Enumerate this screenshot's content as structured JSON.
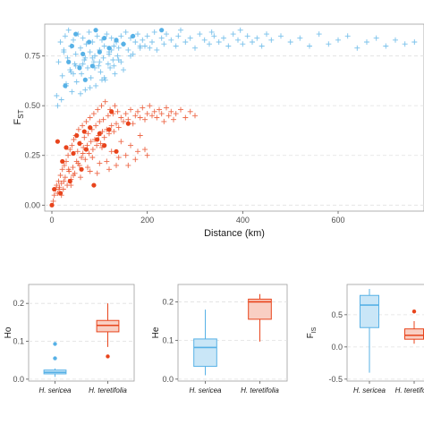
{
  "colors": {
    "sericea": "#57b1e6",
    "sericea_fill": "#c9e6f7",
    "teretifolia": "#e8441c",
    "teretifolia_fill": "#f9cfc3",
    "grid": "#e0e0e0",
    "frame": "#9e9e9e"
  },
  "chart_data": [
    {
      "type": "scatter",
      "xlabel": "Distance (km)",
      "ylabel": "FST",
      "ylabel_main": "F",
      "ylabel_sub": "ST",
      "xlim": [
        -15,
        780
      ],
      "ylim": [
        -0.03,
        0.91
      ],
      "xticks": [
        0,
        200,
        400,
        600
      ],
      "yticks": [
        0.0,
        0.25,
        0.5,
        0.75
      ],
      "xtick_labels": [
        "0",
        "200",
        "400",
        "600"
      ],
      "ytick_labels": [
        "0.00",
        "0.25",
        "0.50",
        "0.75"
      ],
      "grid": true,
      "series": [
        {
          "group": "H. sericea",
          "marker": "cross",
          "color": "#57b1e6",
          "x": [
            10,
            14,
            18,
            22,
            25,
            28,
            30,
            33,
            35,
            38,
            40,
            42,
            45,
            48,
            50,
            52,
            55,
            58,
            60,
            62,
            65,
            68,
            70,
            72,
            75,
            78,
            80,
            82,
            85,
            88,
            90,
            92,
            95,
            98,
            100,
            102,
            105,
            108,
            110,
            112,
            115,
            118,
            120,
            122,
            125,
            128,
            130,
            132,
            135,
            138,
            140,
            145,
            150,
            155,
            160,
            165,
            170,
            175,
            180,
            185,
            190,
            195,
            200,
            210,
            215,
            220,
            230,
            235,
            240,
            250,
            260,
            265,
            270,
            280,
            290,
            300,
            310,
            320,
            330,
            335,
            340,
            350,
            360,
            370,
            380,
            390,
            395,
            400,
            410,
            420,
            430,
            440,
            450,
            460,
            480,
            500,
            520,
            540,
            560,
            580,
            600,
            620,
            640,
            660,
            680,
            700,
            720,
            740,
            760,
            12,
            20,
            30,
            40,
            50,
            60,
            70,
            80,
            90,
            100,
            110,
            120,
            130,
            140,
            150,
            25,
            45,
            65,
            85,
            105,
            125,
            145,
            165,
            185,
            205
          ],
          "y": [
            0.55,
            0.72,
            0.82,
            0.65,
            0.78,
            0.85,
            0.6,
            0.74,
            0.88,
            0.68,
            0.8,
            0.57,
            0.83,
            0.71,
            0.76,
            0.62,
            0.86,
            0.7,
            0.79,
            0.66,
            0.84,
            0.73,
            0.58,
            0.81,
            0.69,
            0.87,
            0.77,
            0.64,
            0.82,
            0.72,
            0.75,
            0.6,
            0.85,
            0.7,
            0.78,
            0.67,
            0.83,
            0.74,
            0.8,
            0.63,
            0.86,
            0.71,
            0.77,
            0.69,
            0.84,
            0.73,
            0.8,
            0.66,
            0.82,
            0.75,
            0.79,
            0.85,
            0.81,
            0.87,
            0.78,
            0.84,
            0.76,
            0.82,
            0.86,
            0.79,
            0.83,
            0.8,
            0.85,
            0.82,
            0.87,
            0.78,
            0.84,
            0.81,
            0.86,
            0.83,
            0.8,
            0.85,
            0.88,
            0.82,
            0.84,
            0.79,
            0.86,
            0.83,
            0.81,
            0.87,
            0.85,
            0.82,
            0.84,
            0.8,
            0.86,
            0.83,
            0.88,
            0.81,
            0.85,
            0.82,
            0.84,
            0.8,
            0.86,
            0.83,
            0.85,
            0.82,
            0.84,
            0.8,
            0.86,
            0.81,
            0.83,
            0.85,
            0.79,
            0.82,
            0.84,
            0.8,
            0.83,
            0.81,
            0.82,
            0.5,
            0.53,
            0.61,
            0.67,
            0.7,
            0.56,
            0.74,
            0.59,
            0.69,
            0.72,
            0.64,
            0.76,
            0.7,
            0.73,
            0.68,
            0.77,
            0.66,
            0.71,
            0.74,
            0.63,
            0.78,
            0.72,
            0.75,
            0.8,
            0.79
          ]
        },
        {
          "group": "H. sericea",
          "marker": "dot",
          "color": "#57b1e6",
          "x": [
            28,
            35,
            42,
            50,
            58,
            65,
            70,
            78,
            85,
            92,
            100,
            110,
            120,
            135,
            150,
            170,
            230
          ],
          "y": [
            0.6,
            0.72,
            0.8,
            0.86,
            0.69,
            0.76,
            0.63,
            0.82,
            0.7,
            0.88,
            0.77,
            0.84,
            0.79,
            0.83,
            0.81,
            0.85,
            0.88
          ]
        },
        {
          "group": "H. teretifolia",
          "marker": "cross",
          "color": "#e8441c",
          "x": [
            3,
            5,
            8,
            10,
            12,
            14,
            16,
            18,
            20,
            22,
            24,
            26,
            28,
            30,
            32,
            34,
            36,
            38,
            40,
            42,
            44,
            46,
            48,
            50,
            52,
            54,
            56,
            58,
            60,
            62,
            64,
            66,
            68,
            70,
            72,
            74,
            76,
            78,
            80,
            82,
            84,
            86,
            88,
            90,
            92,
            94,
            96,
            98,
            100,
            102,
            104,
            106,
            108,
            110,
            112,
            115,
            118,
            120,
            122,
            125,
            128,
            130,
            132,
            135,
            138,
            140,
            145,
            150,
            155,
            160,
            165,
            170,
            175,
            180,
            185,
            190,
            195,
            200,
            205,
            210,
            215,
            220,
            225,
            230,
            235,
            240,
            245,
            250,
            255,
            260,
            270,
            280,
            290,
            300,
            15,
            25,
            35,
            45,
            55,
            65,
            75,
            85,
            95,
            105,
            115,
            125,
            135,
            145,
            155,
            165,
            175,
            185,
            195,
            20,
            40,
            60,
            80,
            100,
            120,
            140,
            160,
            180,
            200
          ],
          "y": [
            0.02,
            0.05,
            0.08,
            0.1,
            0.06,
            0.12,
            0.09,
            0.15,
            0.11,
            0.18,
            0.08,
            0.2,
            0.14,
            0.22,
            0.1,
            0.25,
            0.17,
            0.28,
            0.13,
            0.3,
            0.19,
            0.33,
            0.16,
            0.35,
            0.22,
            0.27,
            0.38,
            0.2,
            0.31,
            0.24,
            0.4,
            0.29,
            0.34,
            0.23,
            0.42,
            0.3,
            0.36,
            0.26,
            0.44,
            0.32,
            0.38,
            0.28,
            0.46,
            0.33,
            0.4,
            0.3,
            0.48,
            0.35,
            0.42,
            0.31,
            0.5,
            0.37,
            0.43,
            0.34,
            0.52,
            0.38,
            0.45,
            0.36,
            0.48,
            0.4,
            0.46,
            0.37,
            0.5,
            0.41,
            0.47,
            0.39,
            0.44,
            0.42,
            0.46,
            0.43,
            0.48,
            0.41,
            0.45,
            0.47,
            0.44,
            0.49,
            0.43,
            0.46,
            0.5,
            0.45,
            0.47,
            0.44,
            0.48,
            0.46,
            0.42,
            0.49,
            0.45,
            0.47,
            0.43,
            0.46,
            0.48,
            0.44,
            0.47,
            0.45,
            0.08,
            0.12,
            0.18,
            0.15,
            0.21,
            0.26,
            0.19,
            0.24,
            0.16,
            0.29,
            0.22,
            0.27,
            0.2,
            0.32,
            0.25,
            0.3,
            0.23,
            0.35,
            0.28,
            0.05,
            0.1,
            0.14,
            0.17,
            0.21,
            0.18,
            0.24,
            0.2,
            0.27,
            0.25
          ]
        },
        {
          "group": "H. teretifolia",
          "marker": "dot",
          "color": "#e8441c",
          "x": [
            0,
            5,
            12,
            18,
            22,
            30,
            38,
            45,
            52,
            58,
            62,
            68,
            72,
            80,
            88,
            95,
            100,
            110,
            120,
            125,
            135,
            160
          ],
          "y": [
            0.0,
            0.08,
            0.32,
            0.06,
            0.22,
            0.29,
            0.12,
            0.26,
            0.35,
            0.31,
            0.18,
            0.37,
            0.28,
            0.39,
            0.1,
            0.33,
            0.36,
            0.3,
            0.38,
            0.47,
            0.27,
            0.41
          ]
        }
      ]
    },
    {
      "type": "box",
      "ylabel": "Ho",
      "ylim": [
        -0.005,
        0.25
      ],
      "yticks": [
        0.0,
        0.1,
        0.2
      ],
      "ytick_labels": [
        "0.0",
        "0.1",
        "0.2"
      ],
      "categories": [
        "H. sericea",
        "H. teretifolia"
      ],
      "boxes": [
        {
          "category": "H. sericea",
          "min": 0.006,
          "q1": 0.014,
          "median": 0.018,
          "q3": 0.024,
          "max": 0.028,
          "outliers": [
            0.055,
            0.093
          ]
        },
        {
          "category": "H. teretifolia",
          "min": 0.085,
          "q1": 0.125,
          "median": 0.142,
          "q3": 0.155,
          "max": 0.2,
          "outliers": [
            0.06
          ]
        }
      ]
    },
    {
      "type": "box",
      "ylabel": "He",
      "ylim": [
        -0.005,
        0.245
      ],
      "yticks": [
        0.0,
        0.1,
        0.2
      ],
      "ytick_labels": [
        "0.0",
        "0.1",
        "0.2"
      ],
      "categories": [
        "H. sericea",
        "H. teretifolia"
      ],
      "boxes": [
        {
          "category": "H. sericea",
          "min": 0.01,
          "q1": 0.033,
          "median": 0.082,
          "q3": 0.104,
          "max": 0.18,
          "outliers": []
        },
        {
          "category": "H. teretifolia",
          "min": 0.097,
          "q1": 0.155,
          "median": 0.2,
          "q3": 0.207,
          "max": 0.22,
          "outliers": []
        }
      ]
    },
    {
      "type": "box",
      "ylabel": "FIS",
      "ylabel_main": "F",
      "ylabel_sub": "IS",
      "ylim": [
        -0.53,
        0.97
      ],
      "yticks": [
        -0.5,
        0.0,
        0.5
      ],
      "ytick_labels": [
        "-0.5",
        "0.0",
        "0.5"
      ],
      "categories": [
        "H. sericea",
        "H. teretifolia"
      ],
      "boxes": [
        {
          "category": "H. sericea",
          "min": -0.4,
          "q1": 0.3,
          "median": 0.65,
          "q3": 0.8,
          "max": 0.9,
          "outliers": []
        },
        {
          "category": "H. teretifolia",
          "min": 0.05,
          "q1": 0.12,
          "median": 0.18,
          "q3": 0.28,
          "max": 0.4,
          "outliers": [
            0.55
          ]
        }
      ]
    }
  ]
}
